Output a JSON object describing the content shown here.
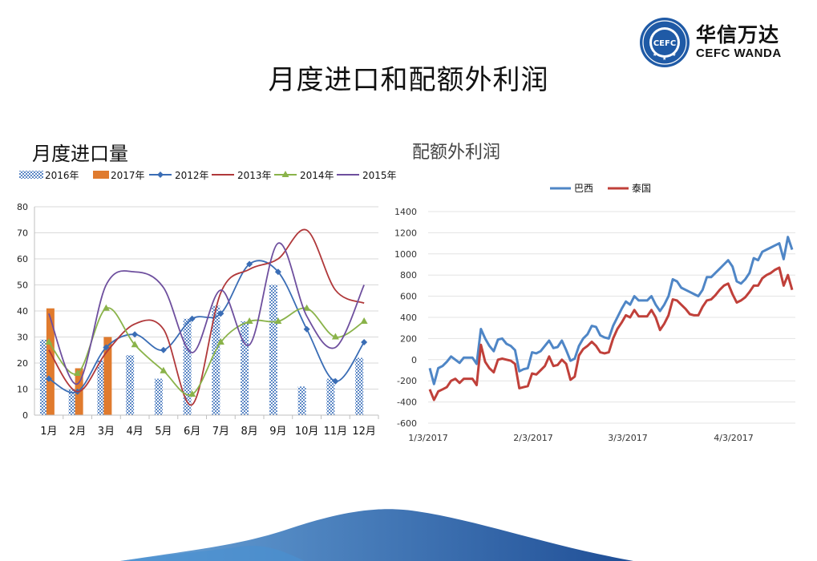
{
  "page": {
    "title": "月度进口和配额外利润"
  },
  "logo": {
    "name_cn": "华信万达",
    "name_en": "CEFC WANDA",
    "emblem_text": "CEFC",
    "emblem_ring_text": "CEFC WANDA FUTURES COMPANY LIMITED"
  },
  "colors": {
    "brand_blue": "#1f5aa6",
    "bar_2016": "#5b87c5",
    "bar_2017": "#e07b2e",
    "line_2012": "#3a6db5",
    "line_2013": "#b0383a",
    "line_2014": "#8ab34a",
    "line_2015": "#6e4f9e",
    "line_brazil": "#4f86c6",
    "line_thailand": "#c0403a"
  },
  "chart_data": [
    {
      "type": "bar",
      "title": "月度进口量",
      "categories": [
        "1月",
        "2月",
        "3月",
        "4月",
        "5月",
        "6月",
        "7月",
        "8月",
        "9月",
        "10月",
        "11月",
        "12月"
      ],
      "ylim": [
        0,
        80
      ],
      "yticks": [
        0,
        10,
        20,
        30,
        40,
        50,
        60,
        70,
        80
      ],
      "grid": true,
      "legend": "top",
      "bar_series": [
        {
          "name": "2016年",
          "pattern": "hatched",
          "values": [
            29,
            10,
            21,
            23,
            14,
            37,
            42,
            36,
            50,
            11,
            14,
            22
          ]
        },
        {
          "name": "2017年",
          "pattern": "solid",
          "values": [
            41,
            18,
            30,
            null,
            null,
            null,
            null,
            null,
            null,
            null,
            null,
            null
          ]
        }
      ],
      "line_series": [
        {
          "name": "2012年",
          "marker": "diamond",
          "values": [
            14,
            9,
            26,
            31,
            25,
            37,
            39,
            58,
            55,
            33,
            13,
            28
          ]
        },
        {
          "name": "2013年",
          "marker": "none",
          "values": [
            25,
            9,
            24,
            35,
            33,
            4,
            47,
            56,
            60,
            71,
            48,
            43
          ]
        },
        {
          "name": "2014年",
          "marker": "triangle",
          "values": [
            28,
            16,
            41,
            27,
            17,
            8,
            28,
            36,
            36,
            41,
            30,
            36
          ]
        },
        {
          "name": "2015年",
          "marker": "none",
          "values": [
            39,
            12,
            50,
            55,
            49,
            24,
            48,
            27,
            66,
            38,
            26,
            50
          ]
        }
      ]
    },
    {
      "type": "line",
      "title": "配额外利润",
      "x_tick_labels": [
        "1/3/2017",
        "2/3/2017",
        "3/3/2017",
        "4/3/2017"
      ],
      "ylim": [
        -600,
        1400
      ],
      "yticks": [
        -600,
        -400,
        -200,
        0,
        200,
        400,
        600,
        800,
        1000,
        1200,
        1400
      ],
      "grid": true,
      "legend": "top",
      "series": [
        {
          "name": "巴西",
          "values": [
            -80,
            -230,
            -80,
            -60,
            -20,
            30,
            0,
            -30,
            20,
            20,
            20,
            -40,
            290,
            200,
            130,
            80,
            190,
            200,
            150,
            130,
            90,
            -110,
            -90,
            -80,
            70,
            60,
            80,
            130,
            180,
            110,
            120,
            180,
            90,
            -10,
            10,
            130,
            200,
            240,
            320,
            310,
            230,
            210,
            200,
            320,
            400,
            480,
            550,
            520,
            600,
            560,
            560,
            560,
            600,
            520,
            460,
            520,
            600,
            760,
            740,
            680,
            660,
            640,
            620,
            600,
            660,
            780,
            780,
            820,
            860,
            900,
            940,
            880,
            740,
            720,
            760,
            820,
            960,
            940,
            1020,
            1040,
            1060,
            1080,
            1100,
            950,
            1160,
            1040
          ]
        },
        {
          "name": "泰国",
          "values": [
            -280,
            -380,
            -300,
            -280,
            -260,
            -200,
            -180,
            -220,
            -180,
            -180,
            -180,
            -240,
            140,
            -20,
            -80,
            -120,
            0,
            10,
            0,
            -10,
            -40,
            -270,
            -260,
            -250,
            -130,
            -140,
            -100,
            -60,
            30,
            -60,
            -50,
            0,
            -40,
            -190,
            -160,
            40,
            100,
            130,
            170,
            130,
            70,
            60,
            70,
            200,
            290,
            350,
            420,
            400,
            470,
            410,
            410,
            410,
            470,
            400,
            280,
            340,
            420,
            570,
            560,
            520,
            480,
            430,
            420,
            420,
            500,
            560,
            570,
            610,
            660,
            700,
            720,
            620,
            540,
            560,
            590,
            640,
            700,
            700,
            770,
            800,
            820,
            850,
            870,
            700,
            800,
            660
          ]
        }
      ]
    }
  ]
}
